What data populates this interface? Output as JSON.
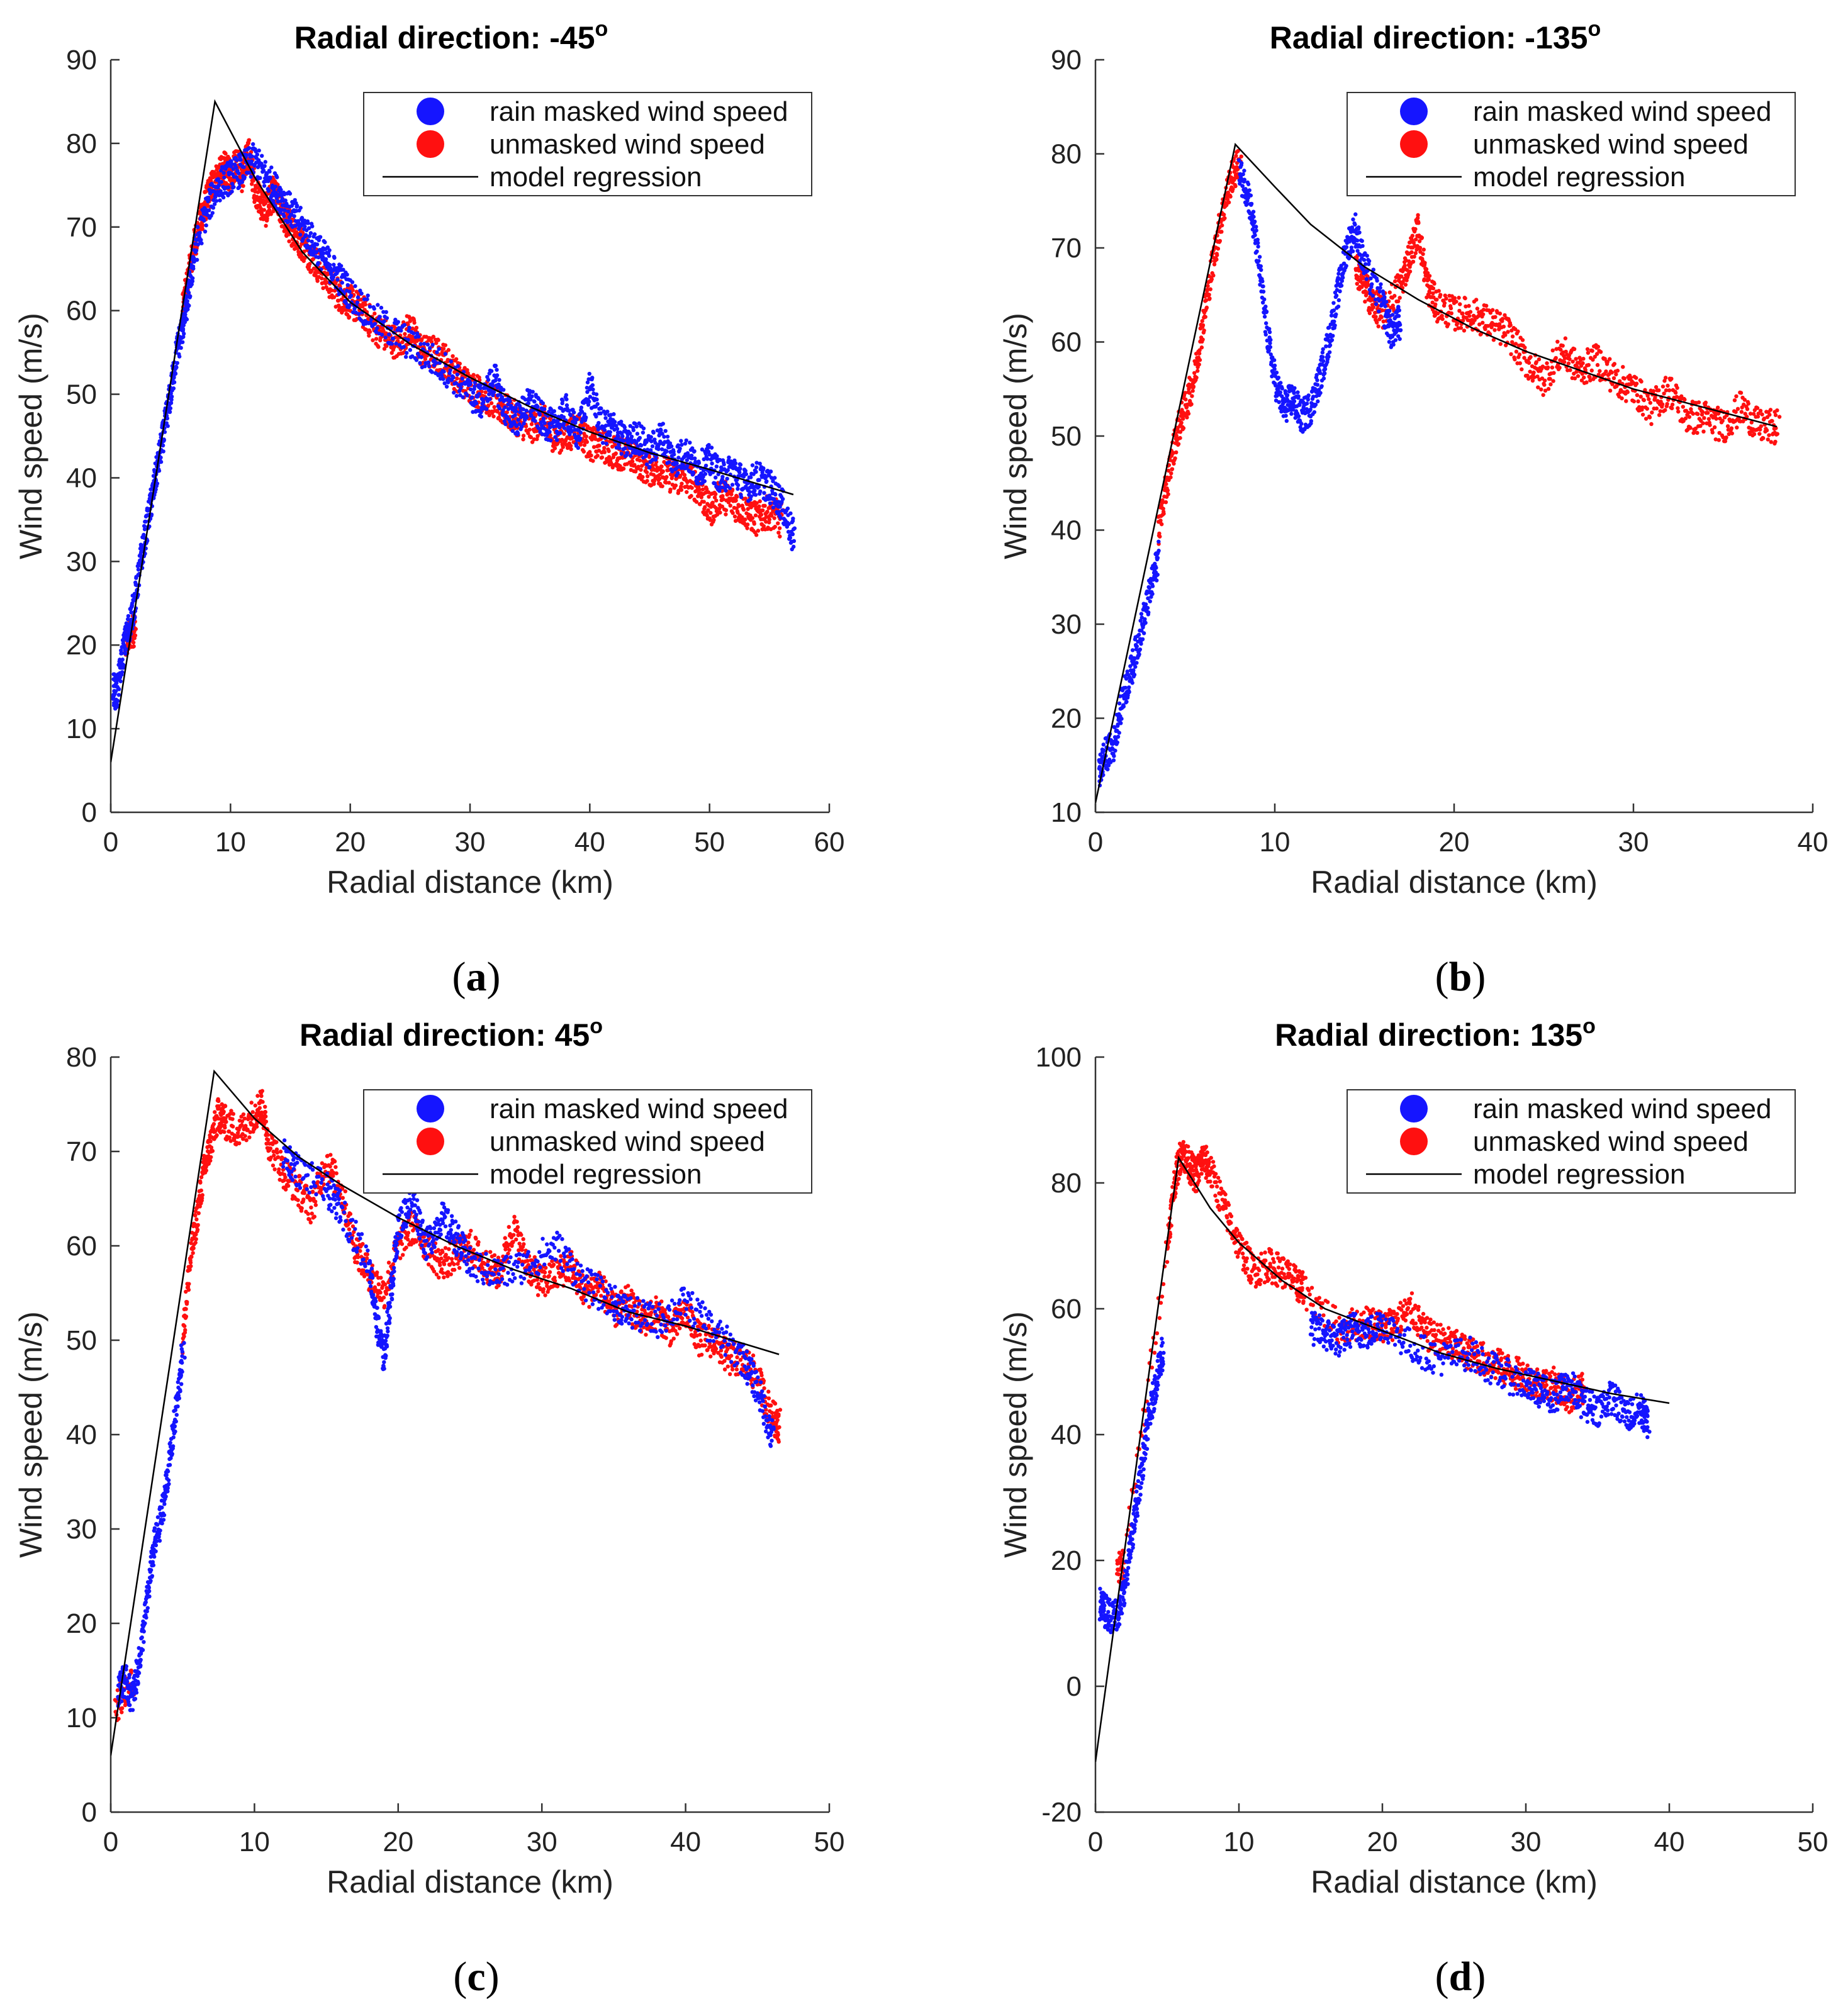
{
  "colors": {
    "masked": "#1515ff",
    "unmasked": "#ff1010",
    "model": "#000000",
    "axis": "#333333"
  },
  "legend_icon": "filled-circle-marker",
  "chart_data": [
    {
      "type": "scatter",
      "panel_label": "a",
      "title_text": "Radial direction: -45",
      "title_sup": "o",
      "xlabel": "Radial distance (km)",
      "ylabel": "Wind speed (m/s)",
      "xlim": [
        0,
        60
      ],
      "ylim": [
        0,
        90
      ],
      "xticks": [
        0,
        10,
        20,
        30,
        40,
        50,
        60
      ],
      "yticks": [
        0,
        10,
        20,
        30,
        40,
        50,
        60,
        70,
        80,
        90
      ],
      "grid": false,
      "legend_position": "top-right",
      "series": [
        {
          "name": "rain masked wind speed",
          "kind": "points",
          "x": [
            0.2,
            0.5,
            1,
            1.5,
            2,
            2.5,
            3,
            3.5,
            4,
            4.5,
            5,
            5.5,
            6,
            6.5,
            7,
            8,
            9,
            10,
            11,
            12,
            13,
            14,
            15,
            16,
            17,
            18,
            19,
            20,
            22,
            24,
            26,
            28,
            30,
            31,
            32,
            33,
            34,
            35,
            36,
            37,
            38,
            39,
            40,
            41,
            42,
            43,
            44,
            45,
            46,
            47,
            48,
            49,
            50,
            51,
            52,
            53,
            54,
            55,
            56,
            57
          ],
          "y": [
            15,
            14,
            19,
            22,
            25,
            30,
            34,
            38,
            42,
            46,
            50,
            55,
            58,
            62,
            67,
            72,
            75,
            76,
            77,
            78,
            76,
            74,
            72,
            70,
            68,
            66,
            64,
            62,
            59,
            57,
            55,
            53,
            50,
            49,
            52,
            48,
            47,
            49,
            47,
            46,
            48,
            45,
            51,
            46,
            46,
            44,
            45,
            43,
            45,
            42,
            43,
            41,
            42,
            40,
            41,
            39,
            40,
            39,
            37,
            33
          ]
        },
        {
          "name": "unmasked wind speed",
          "kind": "points",
          "x": [
            1.2,
            1.5,
            2,
            6,
            6.5,
            7,
            7.5,
            8,
            8.5,
            9,
            9.5,
            10,
            10.5,
            11,
            11.5,
            12,
            12.5,
            13,
            13.5,
            14,
            14.5,
            15,
            15.5,
            16,
            17,
            18,
            19,
            20,
            21,
            22,
            23,
            24,
            25,
            26,
            27,
            28,
            29,
            30,
            31,
            32,
            33,
            34,
            35,
            36,
            37,
            38,
            39,
            40,
            41,
            42,
            43,
            44,
            45,
            46,
            47,
            48,
            49,
            50,
            51,
            52,
            53,
            54,
            55,
            56
          ],
          "y": [
            20,
            21,
            22,
            60,
            64,
            68,
            71,
            73,
            75,
            76,
            77,
            76,
            78,
            76,
            79,
            75,
            73,
            72,
            74,
            73,
            71,
            70,
            69,
            68,
            66,
            64,
            62,
            61,
            60,
            58,
            57,
            56,
            58,
            55,
            55,
            54,
            52,
            51,
            50,
            49,
            48,
            47,
            46,
            47,
            45,
            45,
            46,
            44,
            44,
            43,
            43,
            42,
            41,
            41,
            40,
            40,
            39,
            36,
            38,
            37,
            36,
            35,
            36,
            35
          ]
        },
        {
          "name": "model regression",
          "kind": "line",
          "x": [
            0,
            8.7,
            12,
            16,
            20,
            25,
            30,
            35,
            40,
            45,
            50,
            57
          ],
          "y": [
            6,
            85,
            76,
            67,
            61,
            56,
            52,
            48.5,
            45.5,
            43,
            41,
            38
          ]
        }
      ]
    },
    {
      "type": "scatter",
      "panel_label": "b",
      "title_text": "Radial direction: -135",
      "title_sup": "o",
      "xlabel": "Radial distance (km)",
      "ylabel": "Wind speed (m/s)",
      "xlim": [
        0,
        40
      ],
      "ylim": [
        10,
        90
      ],
      "xticks": [
        0,
        10,
        20,
        30,
        40
      ],
      "yticks": [
        10,
        20,
        30,
        40,
        50,
        60,
        70,
        80,
        90
      ],
      "grid": false,
      "legend_position": "top-right",
      "series": [
        {
          "name": "rain masked wind speed",
          "kind": "points",
          "x": [
            0.2,
            0.5,
            1,
            1.5,
            2,
            2.5,
            3,
            3.5,
            8,
            8.5,
            9,
            9.5,
            10,
            10.5,
            11,
            11.5,
            12,
            12.5,
            13,
            13.5,
            14,
            14.5,
            15,
            16,
            16.5,
            17
          ],
          "y": [
            14,
            16,
            17,
            22,
            25,
            29,
            33,
            37,
            78,
            76,
            70,
            62,
            56,
            53,
            54,
            52,
            53,
            56,
            60,
            65,
            70,
            72,
            68,
            64,
            61,
            62
          ]
        },
        {
          "name": "unmasked wind speed",
          "kind": "points",
          "x": [
            3.5,
            4,
            4.5,
            5,
            5.5,
            6,
            6.5,
            7,
            7.5,
            8,
            14.5,
            15,
            15.5,
            16,
            17,
            17.5,
            18,
            18.5,
            19,
            20,
            21,
            22,
            23,
            24,
            25,
            26,
            27,
            28,
            29,
            30,
            31,
            32,
            33,
            34,
            35,
            36,
            37,
            38
          ],
          "y": [
            40,
            45,
            50,
            53,
            56,
            62,
            68,
            73,
            77,
            79,
            68,
            66,
            64,
            63,
            66,
            69,
            72,
            66,
            64,
            63,
            63,
            62,
            61,
            58,
            56,
            59,
            57,
            58,
            56,
            55,
            53,
            55,
            52,
            52,
            51,
            53,
            51,
            51
          ]
        },
        {
          "name": "model regression",
          "kind": "line",
          "x": [
            0,
            7.8,
            10,
            12,
            15,
            18,
            21,
            24,
            27,
            30,
            34,
            38
          ],
          "y": [
            11,
            81,
            76.5,
            72.5,
            68,
            64.5,
            61.5,
            59,
            57,
            55,
            53,
            51
          ]
        }
      ]
    },
    {
      "type": "scatter",
      "panel_label": "c",
      "title_text": "Radial direction: 45",
      "title_sup": "o",
      "xlabel": "Radial distance (km)",
      "ylabel": "Wind speed (m/s)",
      "xlim": [
        0,
        50
      ],
      "ylim": [
        0,
        80
      ],
      "xticks": [
        0,
        10,
        20,
        30,
        40,
        50
      ],
      "yticks": [
        0,
        10,
        20,
        30,
        40,
        50,
        60,
        70,
        80
      ],
      "grid": false,
      "legend_position": "top-right",
      "series": [
        {
          "name": "rain masked wind speed",
          "kind": "points",
          "x": [
            0.5,
            1,
            1.5,
            2,
            2.5,
            3,
            3.5,
            4,
            4.5,
            5,
            12,
            13,
            15,
            16,
            18,
            18.5,
            19,
            19.5,
            20,
            21,
            22,
            23,
            24,
            25,
            27,
            29,
            31,
            33,
            35,
            36,
            38,
            40,
            42,
            44,
            45,
            46
          ],
          "y": [
            13,
            14,
            12,
            16,
            22,
            28,
            31,
            36,
            42,
            48,
            70,
            68,
            66,
            64,
            58,
            52,
            48,
            55,
            62,
            65,
            60,
            63,
            61,
            58,
            57,
            58,
            60,
            56,
            54,
            53,
            52,
            54,
            51,
            48,
            45,
            40
          ]
        },
        {
          "name": "unmasked wind speed",
          "kind": "points",
          "x": [
            0.3,
            1.5,
            5,
            5.5,
            6,
            6.5,
            7,
            7.5,
            8,
            9,
            10,
            10.5,
            11,
            12,
            13,
            14,
            15,
            16,
            17,
            18,
            19,
            20,
            21,
            22,
            23,
            24,
            25,
            26,
            27,
            28,
            29,
            30,
            31,
            32,
            33,
            34,
            35,
            36,
            37,
            38,
            39,
            40,
            41,
            42,
            43,
            44,
            45,
            46,
            46.5
          ],
          "y": [
            11,
            14,
            50,
            58,
            63,
            68,
            71,
            74,
            73,
            72,
            74,
            75,
            71,
            68,
            66,
            64,
            69,
            66,
            60,
            57,
            55,
            60,
            62,
            60,
            58,
            59,
            60,
            58,
            57,
            62,
            58,
            56,
            57,
            58,
            55,
            56,
            53,
            54,
            52,
            53,
            51,
            53,
            50,
            50,
            48,
            48,
            46,
            42,
            41
          ]
        },
        {
          "name": "model regression",
          "kind": "line",
          "x": [
            0,
            7.2,
            10,
            13,
            16,
            20,
            24,
            28,
            32,
            36,
            40,
            46.5
          ],
          "y": [
            6,
            78.5,
            73.5,
            69.5,
            66.5,
            63,
            60,
            57.5,
            55.5,
            53,
            51.5,
            48.5
          ]
        }
      ]
    },
    {
      "type": "scatter",
      "panel_label": "d",
      "title_text": "Radial direction: 135",
      "title_sup": "o",
      "xlabel": "Radial distance (km)",
      "ylabel": "Wind speed (m/s)",
      "xlim": [
        0,
        50
      ],
      "ylim": [
        -20,
        100
      ],
      "xticks": [
        0,
        10,
        20,
        30,
        40,
        50
      ],
      "yticks": [
        -20,
        0,
        20,
        40,
        60,
        80,
        100
      ],
      "grid": false,
      "legend_position": "top-right",
      "series": [
        {
          "name": "rain masked wind speed",
          "kind": "points",
          "x": [
            0.3,
            0.7,
            1.2,
            1.7,
            2.2,
            2.7,
            3.2,
            3.7,
            4.2,
            4.7,
            15,
            16,
            17,
            18,
            19,
            20,
            22,
            24,
            26,
            28,
            30,
            31,
            32,
            33,
            34,
            35,
            36,
            37,
            38,
            38.5
          ],
          "y": [
            13,
            12,
            11,
            12,
            18,
            26,
            34,
            42,
            48,
            53,
            57,
            56,
            55,
            57,
            56,
            58,
            54,
            52,
            53,
            50,
            48,
            47,
            46,
            48,
            45,
            44,
            46,
            43,
            44,
            42
          ]
        },
        {
          "name": "unmasked wind speed",
          "kind": "points",
          "x": [
            1.5,
            2,
            5,
            5.5,
            6,
            6.5,
            7,
            7.5,
            8,
            9,
            10,
            11,
            12,
            13,
            14,
            14.5,
            17,
            19,
            20,
            21,
            22,
            23,
            24,
            25,
            26,
            27,
            28,
            29,
            30,
            31,
            32,
            33,
            34
          ],
          "y": [
            18,
            20,
            70,
            80,
            85,
            83,
            81,
            84,
            82,
            76,
            70,
            66,
            67,
            66,
            64,
            63,
            57,
            58,
            57,
            58,
            60,
            56,
            55,
            54,
            53,
            52,
            51,
            50,
            49,
            48,
            48,
            46,
            47
          ]
        },
        {
          "name": "model regression",
          "kind": "line",
          "x": [
            0,
            5.8,
            8,
            10,
            13,
            16,
            20,
            24,
            28,
            32,
            36,
            40
          ],
          "y": [
            -12,
            84,
            76,
            70.5,
            64.5,
            60,
            56.5,
            53,
            50.5,
            48.5,
            46.5,
            45
          ]
        }
      ]
    }
  ]
}
